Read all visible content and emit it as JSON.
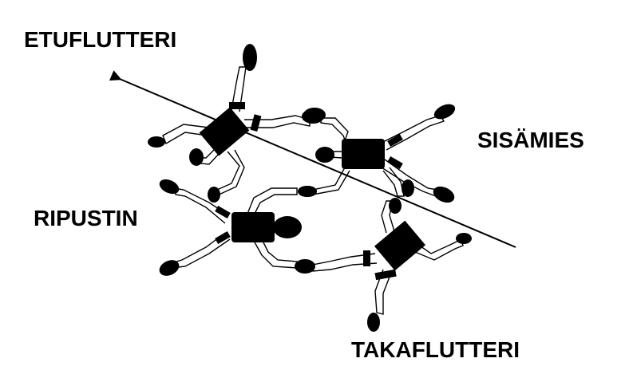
{
  "labels": {
    "front_floater": "ETUFLUTTERI",
    "inside_center": "SISÄMIES",
    "hanger": "RIPUSTIN",
    "rear_floater": "TAKAFLUTTERI"
  },
  "colors": {
    "ink": "#000000",
    "background": "#ffffff"
  },
  "figures": [
    {
      "name": "front-floater-figure"
    },
    {
      "name": "inside-center-figure"
    },
    {
      "name": "hanger-figure"
    },
    {
      "name": "rear-floater-figure"
    }
  ],
  "arrow": {
    "direction": "toward-front-floater"
  }
}
